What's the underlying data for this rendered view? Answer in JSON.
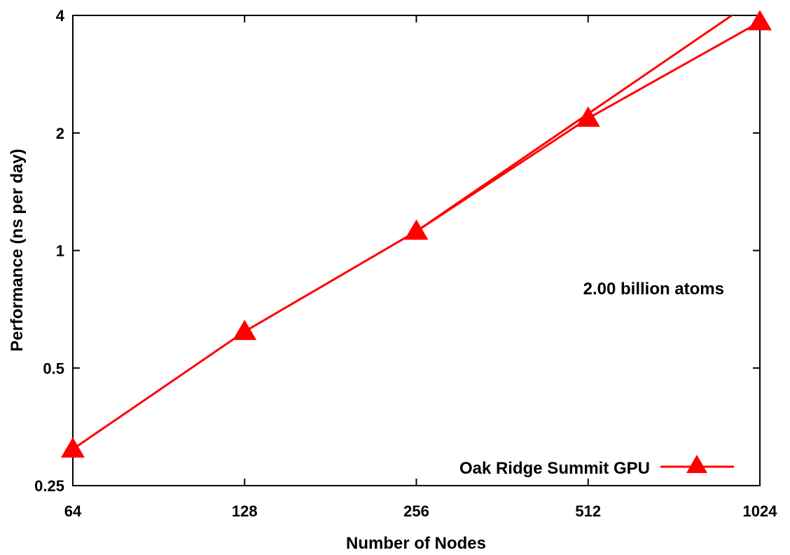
{
  "chart_data": {
    "type": "line",
    "title": "",
    "xlabel": "Number of Nodes",
    "ylabel": "Performance (ns per day)",
    "x_scale": "log2",
    "y_scale": "log2",
    "xlim": [
      64,
      1024
    ],
    "ylim": [
      0.25,
      4
    ],
    "x_ticks": [
      64,
      128,
      256,
      512,
      1024
    ],
    "x_tick_labels": [
      "64",
      "128",
      "256",
      "512",
      "1024"
    ],
    "y_ticks": [
      0.25,
      0.5,
      1,
      2,
      4
    ],
    "y_tick_labels": [
      "0.25",
      "0.5",
      "1",
      "2",
      "4"
    ],
    "grid": false,
    "legend_position": "bottom-right",
    "annotation": "2.00 billion atoms",
    "series": [
      {
        "name": "Oak Ridge Summit GPU",
        "color": "#ff0000",
        "marker": "triangle",
        "x": [
          64,
          128,
          256,
          512,
          1024
        ],
        "y": [
          0.31,
          0.62,
          1.12,
          2.18,
          3.85
        ]
      }
    ],
    "ideal_line": {
      "color": "#ff0000",
      "x": [
        256,
        1024
      ],
      "y": [
        1.12,
        4.48
      ]
    }
  }
}
